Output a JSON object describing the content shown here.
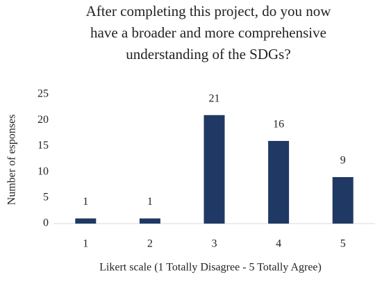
{
  "chart_data": {
    "type": "bar",
    "title": [
      "After completing this project, do you now",
      "have a broader and more comprehensive",
      "understanding of the SDGs?"
    ],
    "x_label": "Likert scale (1 Totally Disagree - 5 Totally Agree)",
    "y_label": "Number of esponses",
    "categories": [
      "1",
      "2",
      "3",
      "4",
      "5"
    ],
    "values": [
      1,
      1,
      21,
      16,
      9
    ],
    "color": "#203864",
    "ylim": [
      0,
      25
    ],
    "yticks": [
      0,
      5,
      10,
      15,
      20,
      25
    ],
    "grid": false
  }
}
